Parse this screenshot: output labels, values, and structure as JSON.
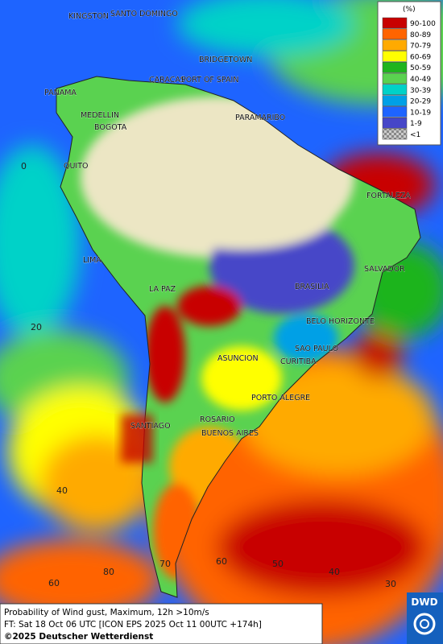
{
  "map": {
    "cities": [
      "KINGSTON",
      "SANTO DOMINGO",
      "BRIDGETOWN",
      "CARACAS",
      "PORT OF SPAIN",
      "PANAMA",
      "PARAMARIBO",
      "MEDELLIN",
      "BOGOTA",
      "QUITO",
      "FORTALEZA",
      "LIMA",
      "SALVADOR",
      "LA PAZ",
      "BRASILIA",
      "BELO HORIZONTE",
      "SAO PAULO",
      "ASUNCION",
      "CURITIBA",
      "PORTO ALEGRE",
      "ROSARIO",
      "SANTIAGO",
      "BUENOS AIRES"
    ],
    "lat_labels": [
      0,
      20,
      40,
      60
    ],
    "lon_labels": [
      80,
      70,
      60,
      50,
      40,
      30
    ],
    "legend": {
      "title": "(%)",
      "entries": [
        {
          "label": "90-100",
          "color": "#c80000"
        },
        {
          "label": "80-89",
          "color": "#ff6400"
        },
        {
          "label": "70-79",
          "color": "#ffaa00"
        },
        {
          "label": "60-69",
          "color": "#ffff00"
        },
        {
          "label": "50-59",
          "color": "#1eb41e"
        },
        {
          "label": "40-49",
          "color": "#5ad250"
        },
        {
          "label": "30-39",
          "color": "#00d2c8"
        },
        {
          "label": "20-29",
          "color": "#00a0e6"
        },
        {
          "label": "10-19",
          "color": "#1e64ff"
        },
        {
          "label": "1-9",
          "color": "#4646c8"
        },
        {
          "label": "<1",
          "color": "#9a9a9a"
        }
      ]
    },
    "footer": {
      "line1": "Probability of Wind gust, Maximum, 12h >10m/s",
      "line2": "FT: Sat 18 Oct 06 UTC [ICON EPS 2025 Oct 11 00UTC +174h]",
      "copyright": "©2025 Deutscher Wetterdienst"
    },
    "logo": "DWD"
  }
}
